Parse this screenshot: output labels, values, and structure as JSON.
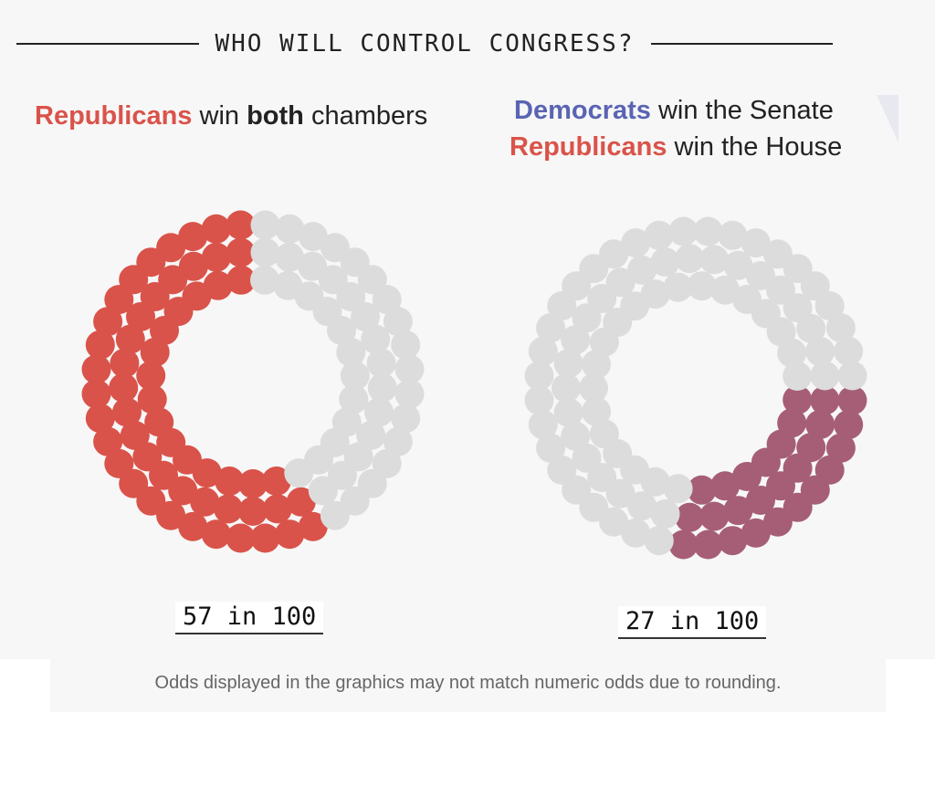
{
  "header": {
    "title": "WHO WILL CONTROL CONGRESS?"
  },
  "scenarios": [
    {
      "subtitle_lines": [
        [
          {
            "text": "Republicans",
            "style": "red"
          },
          {
            "text": " win ",
            "style": "plain"
          },
          {
            "text": "both",
            "style": "bold"
          },
          {
            "text": " chambers",
            "style": "plain"
          }
        ]
      ],
      "odds_label": "57 in 100"
    },
    {
      "subtitle_lines": [
        [
          {
            "text": "Democrats",
            "style": "blue"
          },
          {
            "text": " win the Senate",
            "style": "plain"
          }
        ],
        [
          {
            "text": "Republicans",
            "style": "red"
          },
          {
            "text": " win the House",
            "style": "plain"
          }
        ]
      ],
      "odds_label": "27 in 100"
    }
  ],
  "footnote": "Odds displayed in the graphics may not match numeric odds due to rounding.",
  "colors": {
    "republican": "#d9534a",
    "democrat": "#5a64b3",
    "split": "#a65e77",
    "empty": "#dcdcdc",
    "background": "#f7f7f7"
  },
  "chart_data": [
    {
      "type": "pie",
      "title": "",
      "total": 100,
      "highlighted": 57,
      "start_position": "top",
      "direction": "counterclockwise",
      "color_key": "republican"
    },
    {
      "type": "pie",
      "title": "",
      "total": 100,
      "highlighted": 27,
      "start_position": "right",
      "direction": "clockwise",
      "color_key": "split"
    }
  ]
}
